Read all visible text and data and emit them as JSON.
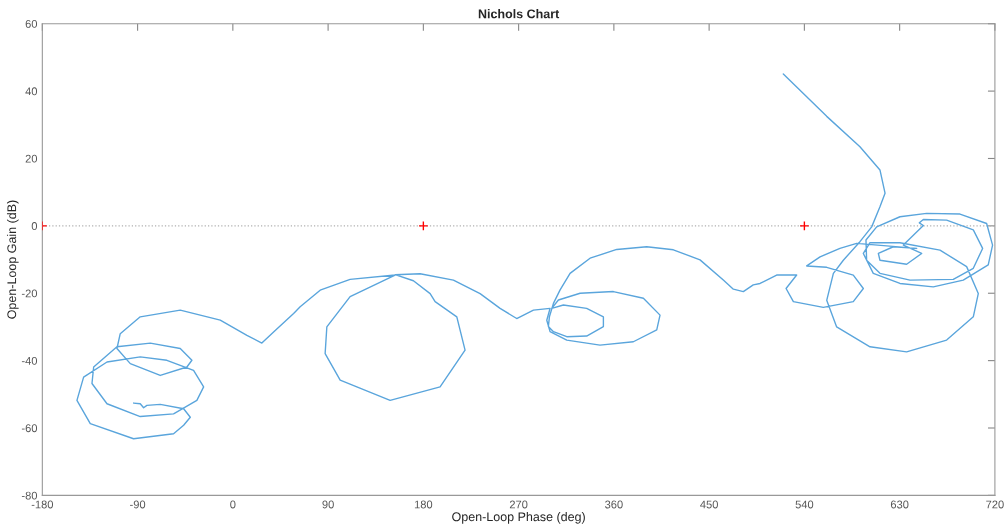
{
  "chart_data": {
    "type": "line",
    "title": "Nichols Chart",
    "xlabel": "Open-Loop Phase (deg)",
    "ylabel": "Open-Loop Gain (dB)",
    "xlim": [
      -180,
      720
    ],
    "ylim": [
      -80,
      60
    ],
    "xticks": [
      -180,
      -90,
      0,
      90,
      180,
      270,
      360,
      450,
      540,
      630,
      720
    ],
    "yticks": [
      -80,
      -60,
      -40,
      -20,
      0,
      20,
      40,
      60
    ],
    "grid": false,
    "marker": "none",
    "line_style": "solid",
    "ref_lines": [
      {
        "axis": "y",
        "value": 0,
        "color": "#b0b0b0",
        "line_style": "dotted"
      }
    ],
    "series": [
      {
        "color": "#5aa5dc",
        "x": [
          520.1,
          561.1,
          592.5,
          611.4,
          616.2,
          611.4,
          603.6,
          592.5,
          576.8,
          567.4,
          561.1,
          570.5,
          602.0,
          636.6,
          674.4,
          699.6,
          704.3,
          693.3,
          668.1,
          630.3,
          602.0,
          595.7,
          605.1,
          630.3,
          661.8,
          690.1,
          713.7,
          717.8,
          712.2,
          687.0,
          655.5,
          630.3,
          608.3,
          598.2,
          598.8,
          611.4,
          639.8,
          680.7,
          699.6,
          708.4,
          699.6,
          674.4,
          652.4,
          648.6,
          652.4,
          633.5,
          650.8,
          636.6,
          611.4,
          609.9,
          624.0,
          646.1,
          589.4,
          573.6,
          554.8,
          542.2,
          561.1,
          586.2,
          595.7,
          586.2,
          557.9,
          529.6,
          522.7,
          532.7,
          513.8,
          498.1,
          491.7,
          482.3,
          472.9,
          463.4,
          441.4,
          416.2,
          391.0,
          362.7,
          337.5,
          318.6,
          309.2,
          302.9,
          299.1,
          298.1,
          302.9,
          315.5,
          334.3,
          350.1,
          350.1,
          334.3,
          312.3,
          301.3,
          307.6,
          328.1,
          359.5,
          387.9,
          403.6,
          400.5,
          378.4,
          346.9,
          315.5,
          299.7,
          296.6,
          299.7,
          284.0,
          268.2,
          252.5,
          233.6,
          208.4,
          176.9,
          153.3,
          170.6,
          186.4,
          191.1,
          211.6,
          219.4,
          195.8,
          148.6,
          101.4,
          87.2,
          88.8,
          110.8,
          153.3,
          110.8,
          82.5,
          63.6,
          57.4,
          38.5,
          27.4,
          13.3,
          -11.9,
          -49.7,
          -87.5,
          -106.4,
          -109.5,
          -96.9,
          -68.6,
          -43.4,
          -38.7,
          -49.7,
          -78.0,
          -109.5,
          -131.5,
          -133.1,
          -118.9,
          -87.5,
          -56.0,
          -34.0,
          -27.6,
          -37.1,
          -62.3,
          -87.5,
          -118.9,
          -141.0,
          -147.3,
          -134.7,
          -93.8,
          -56.0,
          -46.5,
          -40.2,
          -46.5,
          -68.6,
          -81.2,
          -84.3,
          -87.5,
          -93.8
        ],
        "values": [
          45.1,
          32.5,
          23.5,
          16.6,
          9.7,
          5.7,
          -0.3,
          -4.7,
          -10.2,
          -14.1,
          -22.1,
          -30.0,
          -35.9,
          -37.4,
          -33.9,
          -27.0,
          -20.1,
          -12.1,
          -7.2,
          -5.0,
          -5.0,
          -8.2,
          -14.1,
          -17.1,
          -18.1,
          -16.1,
          -11.6,
          -5.7,
          0.7,
          3.5,
          3.7,
          2.7,
          -0.3,
          -4.2,
          -10.2,
          -14.1,
          -16.1,
          -15.9,
          -12.6,
          -6.7,
          -1.2,
          1.7,
          1.9,
          0.9,
          0.1,
          -5.7,
          -8.2,
          -11.4,
          -10.2,
          -8.2,
          -6.2,
          -6.7,
          -5.2,
          -6.7,
          -9.2,
          -11.9,
          -12.3,
          -14.6,
          -18.6,
          -22.5,
          -24.2,
          -22.5,
          -18.6,
          -14.6,
          -14.6,
          -17.1,
          -17.5,
          -19.5,
          -18.8,
          -16.1,
          -10.1,
          -7.1,
          -6.2,
          -7.0,
          -9.6,
          -14.1,
          -19.0,
          -23.0,
          -27.0,
          -29.9,
          -31.4,
          -32.9,
          -32.7,
          -29.9,
          -27.0,
          -24.5,
          -23.5,
          -24.5,
          -22.0,
          -20.0,
          -19.5,
          -21.5,
          -26.5,
          -30.9,
          -34.4,
          -35.4,
          -33.9,
          -31.4,
          -28.0,
          -24.5,
          -25.0,
          -27.5,
          -24.5,
          -20.1,
          -16.1,
          -14.2,
          -14.5,
          -16.3,
          -20.1,
          -22.5,
          -27.0,
          -36.9,
          -47.8,
          -51.8,
          -45.8,
          -37.9,
          -30.0,
          -21.0,
          -14.6,
          -15.9,
          -19.1,
          -24.0,
          -26.0,
          -31.5,
          -34.8,
          -32.5,
          -28.0,
          -25.0,
          -27.0,
          -32.0,
          -36.4,
          -40.9,
          -44.4,
          -41.9,
          -39.9,
          -36.4,
          -34.8,
          -35.9,
          -41.9,
          -46.8,
          -52.8,
          -56.6,
          -55.8,
          -51.8,
          -47.8,
          -42.9,
          -39.9,
          -38.9,
          -40.4,
          -44.9,
          -51.8,
          -58.7,
          -63.2,
          -61.7,
          -59.2,
          -56.8,
          -54.3,
          -53.0,
          -53.3,
          -54.0,
          -52.8,
          -52.6
        ]
      },
      {
        "type": "scatter",
        "color": "#ff0000",
        "marker": "cross",
        "x": [
          -180,
          180,
          540
        ],
        "values": [
          0,
          0,
          0
        ]
      }
    ]
  }
}
